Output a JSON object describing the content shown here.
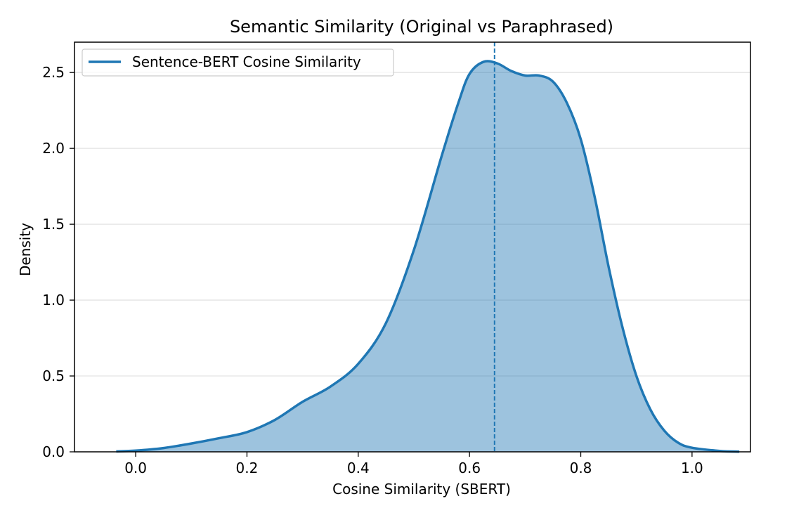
{
  "chart_data": {
    "type": "area",
    "title": "Semantic Similarity (Original vs Paraphrased)",
    "xlabel": "Cosine Similarity (SBERT)",
    "ylabel": "Density",
    "xlim": [
      -0.11,
      1.105
    ],
    "ylim": [
      0,
      2.7
    ],
    "xticks": [
      0.0,
      0.2,
      0.4,
      0.6,
      0.8,
      1.0
    ],
    "xtick_labels": [
      "0.0",
      "0.2",
      "0.4",
      "0.6",
      "0.8",
      "1.0"
    ],
    "yticks": [
      0.0,
      0.5,
      1.0,
      1.5,
      2.0,
      2.5
    ],
    "ytick_labels": [
      "0.0",
      "0.5",
      "1.0",
      "1.5",
      "2.0",
      "2.5"
    ],
    "grid": "horizontal",
    "legend_position": "upper-left",
    "color": "#1f77b4",
    "series": [
      {
        "name": "Sentence-BERT Cosine Similarity",
        "x": [
          -0.035,
          0.0,
          0.05,
          0.1,
          0.15,
          0.2,
          0.25,
          0.3,
          0.35,
          0.4,
          0.45,
          0.5,
          0.55,
          0.58,
          0.6,
          0.625,
          0.65,
          0.675,
          0.7,
          0.725,
          0.75,
          0.775,
          0.8,
          0.825,
          0.85,
          0.875,
          0.9,
          0.925,
          0.95,
          0.975,
          1.0,
          1.05,
          1.085
        ],
        "y": [
          0.003,
          0.008,
          0.025,
          0.055,
          0.09,
          0.13,
          0.21,
          0.33,
          0.43,
          0.58,
          0.85,
          1.33,
          1.95,
          2.3,
          2.49,
          2.57,
          2.56,
          2.51,
          2.48,
          2.48,
          2.44,
          2.3,
          2.06,
          1.68,
          1.22,
          0.82,
          0.5,
          0.28,
          0.14,
          0.06,
          0.027,
          0.006,
          0.001
        ]
      }
    ],
    "reference_line": {
      "x": 0.645,
      "style": "dashed"
    }
  }
}
